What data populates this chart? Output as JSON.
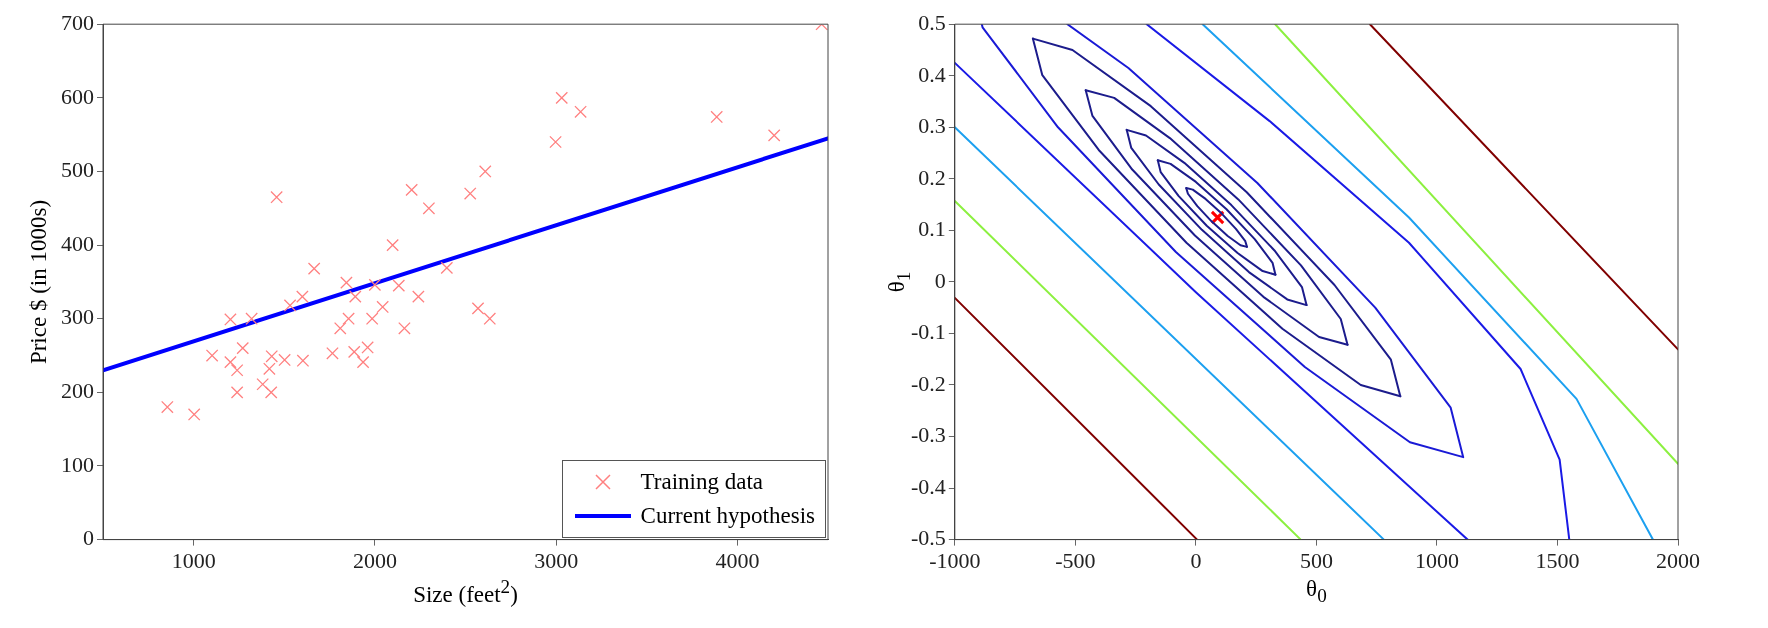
{
  "chart_data": [
    {
      "type": "scatter",
      "xlabel": "Size (feet$^{2}$)",
      "ylabel": "Price $ (in 1000s)",
      "xlim": [
        500,
        4500
      ],
      "xticks": [
        1000,
        2000,
        3000,
        4000
      ],
      "ylim": [
        0,
        700
      ],
      "yticks": [
        0,
        100,
        200,
        300,
        400,
        500,
        600,
        700
      ],
      "grid": false,
      "legend": "bottom right",
      "series": [
        {
          "name": "Training data",
          "type": "scatter",
          "marker": "cross",
          "color": "#ff8080",
          "x": [
            855,
            1003,
            1102,
            1203,
            1203,
            1240,
            1240,
            1271,
            1320,
            1381,
            1418,
            1428,
            1431,
            1458,
            1502,
            1532,
            1600,
            1603,
            1665,
            1766,
            1809,
            1843,
            1855,
            1886,
            1892,
            1935,
            1960,
            1985,
            2000,
            2043,
            2098,
            2132,
            2163,
            2203,
            2240,
            2298,
            2397,
            2526,
            2569,
            2609,
            2634,
            2997,
            3031,
            3135,
            3886,
            4203,
            4465
          ],
          "values": [
            180,
            170,
            250,
            299,
            241,
            230,
            200,
            260,
            300,
            211,
            232,
            200,
            249,
            465,
            244,
            318,
            330,
            243,
            368,
            253,
            287,
            349,
            300,
            255,
            330,
            241,
            261,
            300,
            346,
            316,
            400,
            345,
            287,
            475,
            330,
            450,
            369,
            470,
            314,
            500,
            300,
            540,
            600,
            581,
            574,
            549,
            700
          ]
        },
        {
          "name": "Current hypothesis",
          "type": "line",
          "line_style": "solid",
          "color": "#0000ff",
          "x": [
            500,
            4500
          ],
          "values": [
            230,
            545
          ]
        }
      ]
    },
    {
      "type": "line",
      "xlabel": "θ$_{0}$",
      "ylabel": "θ$_{1}$",
      "xlim": [
        -1000,
        2000
      ],
      "xticks": [
        -1000,
        -500,
        0,
        500,
        1000,
        1500,
        2000
      ],
      "ylim": [
        -0.5,
        0.5
      ],
      "yticks": [
        -0.5,
        -0.4,
        -0.3,
        -0.2,
        -0.1,
        0,
        0.1,
        0.2,
        0.3,
        0.4,
        0.5
      ],
      "grid": false,
      "legend": false,
      "series": [
        {
          "color": "#1c1c8c",
          "x": [
            -40,
            -13,
            40,
            106,
            166,
            205,
            212
          ],
          "values": [
            0.182,
            0.179,
            0.161,
            0.133,
            0.103,
            0.079,
            0.068
          ]
        },
        {
          "color": "#1c1c8c",
          "x": [
            -40,
            -33,
            6,
            66,
            132,
            185,
            212
          ],
          "values": [
            0.182,
            0.171,
            0.147,
            0.117,
            0.089,
            0.071,
            0.068
          ]
        },
        {
          "color": "#1c1c8c",
          "x": [
            -158,
            -105,
            0,
            127,
            244,
            318,
            330
          ],
          "values": [
            0.236,
            0.229,
            0.194,
            0.141,
            0.083,
            0.037,
            0.014
          ]
        },
        {
          "color": "#1c1c8c",
          "x": [
            -158,
            -146,
            -72,
            45,
            173,
            277,
            330
          ],
          "values": [
            0.236,
            0.213,
            0.167,
            0.109,
            0.056,
            0.021,
            0.014
          ]
        },
        {
          "color": "#1c1c8c",
          "x": [
            -287,
            -207,
            -48,
            147,
            326,
            440,
            459
          ],
          "values": [
            0.295,
            0.284,
            0.231,
            0.149,
            0.061,
            -0.01,
            -0.045
          ]
        },
        {
          "color": "#1c1c8c",
          "x": [
            -287,
            -268,
            -154,
            25,
            220,
            379,
            459
          ],
          "values": [
            0.295,
            0.26,
            0.189,
            0.101,
            0.019,
            -0.034,
            -0.045
          ]
        },
        {
          "color": "#1c1c8c",
          "x": [
            -457,
            -339,
            -108,
            176,
            436,
            601,
            629
          ],
          "values": [
            0.372,
            0.357,
            0.279,
            0.16,
            0.032,
            -0.072,
            -0.122
          ]
        },
        {
          "color": "#1c1c8c",
          "x": [
            -457,
            -429,
            -264,
            -4,
            280,
            511,
            629
          ],
          "values": [
            0.372,
            0.322,
            0.218,
            0.09,
            -0.029,
            -0.107,
            -0.122
          ]
        },
        {
          "color": "#1c1c8c",
          "x": [
            -676,
            -512,
            -187,
            211,
            575,
            809,
            848
          ],
          "values": [
            0.472,
            0.45,
            0.341,
            0.174,
            -0.006,
            -0.151,
            -0.222
          ]
        },
        {
          "color": "#1c1c8c",
          "x": [
            -676,
            -637,
            -403,
            -39,
            359,
            684,
            848
          ],
          "values": [
            0.472,
            0.401,
            0.256,
            0.076,
            -0.091,
            -0.2,
            -0.222
          ]
        },
        {
          "color": "#1a1ad6",
          "x": [
            -888,
            -885,
            -572,
            -83,
            452,
            888,
            1109,
            1057,
            744,
            255,
            -280,
            -533
          ],
          "values": [
            0.5,
            0.494,
            0.3,
            0.058,
            -0.165,
            -0.311,
            -0.34,
            -0.244,
            -0.05,
            0.192,
            0.415,
            0.5
          ]
        },
        {
          "color": "#1a1ae6",
          "x": [
            -1000,
            0,
            1127
          ],
          "values": [
            0.425,
            -0.02,
            -0.5
          ]
        },
        {
          "color": "#1a1ae6",
          "x": [
            -204,
            306,
            884,
            1347,
            1509,
            1549
          ],
          "values": [
            0.5,
            0.312,
            0.076,
            -0.169,
            -0.345,
            -0.5
          ]
        },
        {
          "color": "#1ca0f0",
          "x": [
            -1000,
            780
          ],
          "values": [
            0.3,
            -0.5
          ]
        },
        {
          "color": "#1ca0f0",
          "x": [
            28,
            884,
            1579,
            1896
          ],
          "values": [
            0.5,
            0.125,
            -0.227,
            -0.5
          ]
        },
        {
          "color": "#8cf040",
          "x": [
            -1000,
            435
          ],
          "values": [
            0.157,
            -0.5
          ]
        },
        {
          "color": "#8cf040",
          "x": [
            329,
            2000
          ],
          "values": [
            0.5,
            -0.353
          ]
        },
        {
          "color": "#800000",
          "x": [
            -1000,
            5
          ],
          "values": [
            -0.031,
            -0.5
          ]
        },
        {
          "color": "#800000",
          "x": [
            722,
            2000
          ],
          "values": [
            0.5,
            -0.131
          ]
        },
        {
          "type": "scatter",
          "marker": "cross",
          "color": "#ff0000",
          "x": [
            90
          ],
          "values": [
            0.125
          ]
        }
      ]
    }
  ]
}
